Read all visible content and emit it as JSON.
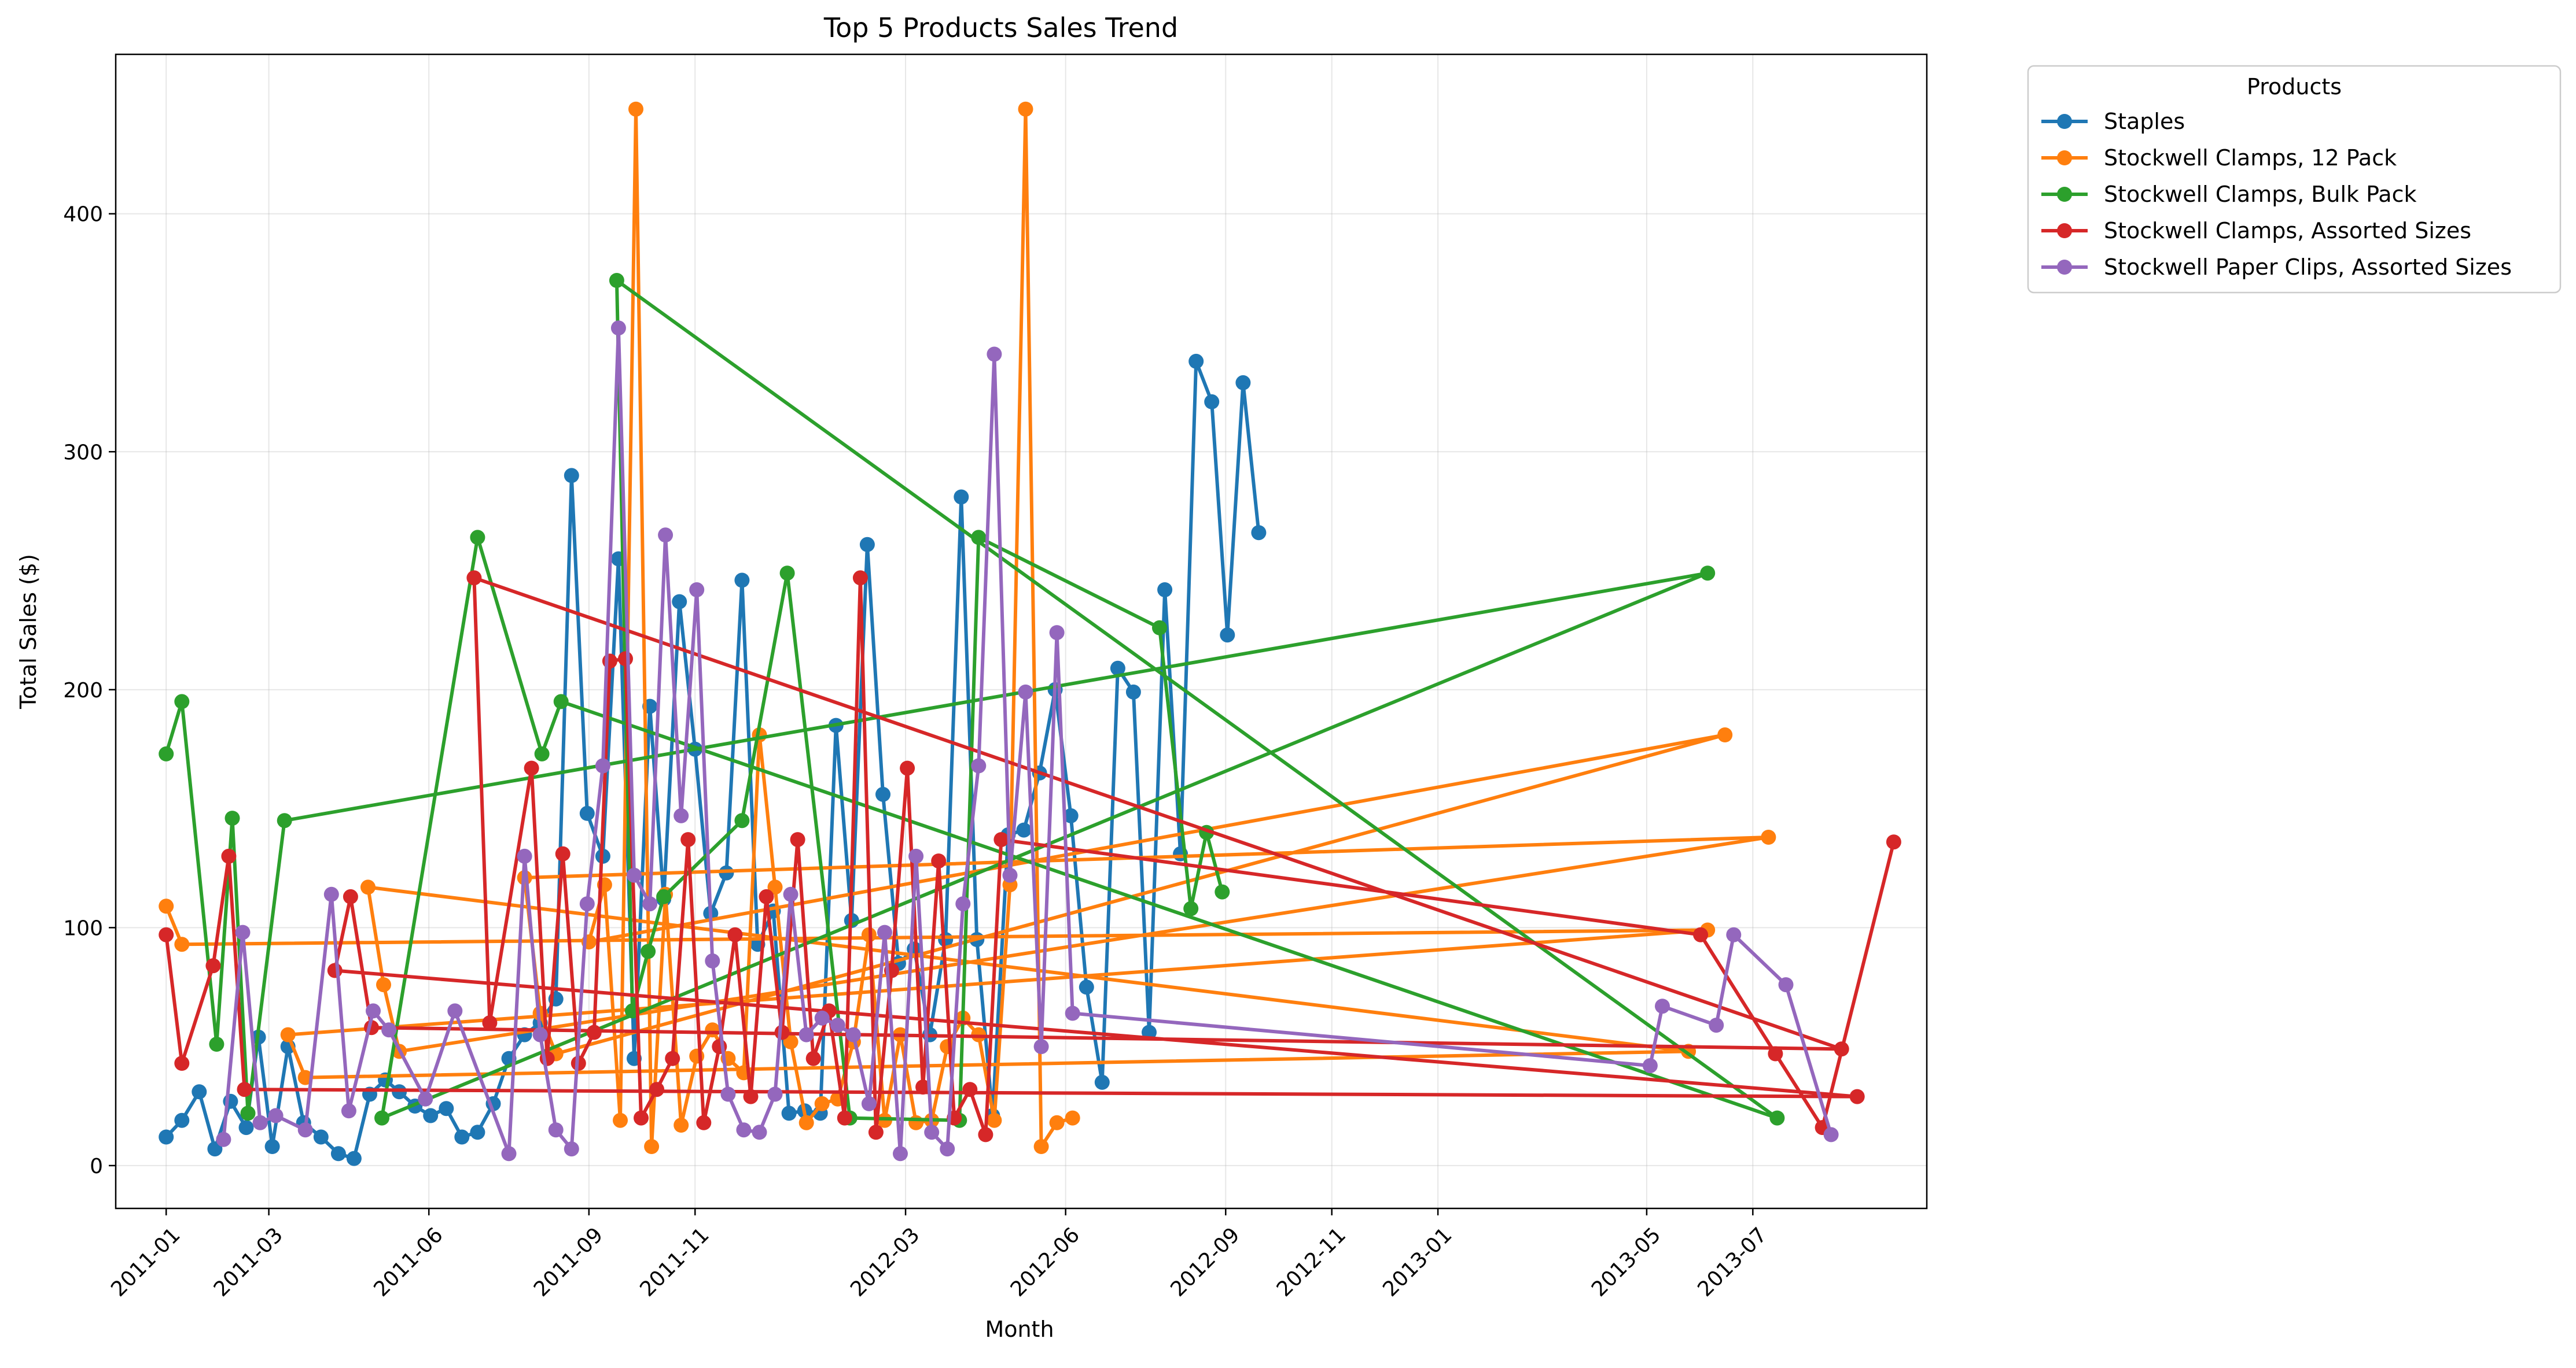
{
  "chart_data": {
    "type": "line",
    "title": "Top 5 Products Sales Trend",
    "xlabel": "Month",
    "ylabel": "Total Sales ($)",
    "xlim": [
      "2010-12-03",
      "2013-10-09"
    ],
    "ylim": [
      -18,
      467
    ],
    "x_ticks": [
      "2011-01",
      "2011-03",
      "2011-06",
      "2011-09",
      "2011-11",
      "2012-03",
      "2012-06",
      "2012-09",
      "2012-11",
      "2013-01",
      "2013-05",
      "2013-07"
    ],
    "y_ticks": [
      0,
      100,
      200,
      300,
      400
    ],
    "grid": true,
    "legend": {
      "title": "Products",
      "placement": "outside-top-right"
    },
    "series": [
      {
        "name": "Staples",
        "color": "#1f77b4",
        "points": [
          [
            "2011-01-01",
            12
          ],
          [
            "2011-01-10",
            19
          ],
          [
            "2011-01-20",
            31
          ],
          [
            "2011-01-29",
            7
          ],
          [
            "2011-02-07",
            27
          ],
          [
            "2011-02-16",
            16
          ],
          [
            "2011-02-23",
            54
          ],
          [
            "2011-03-03",
            8
          ],
          [
            "2011-03-12",
            50
          ],
          [
            "2011-03-21",
            18
          ],
          [
            "2011-03-31",
            12
          ],
          [
            "2011-04-10",
            5
          ],
          [
            "2011-04-19",
            3
          ],
          [
            "2011-04-28",
            30
          ],
          [
            "2011-05-07",
            36
          ],
          [
            "2011-05-15",
            31
          ],
          [
            "2011-05-24",
            25
          ],
          [
            "2011-06-02",
            21
          ],
          [
            "2011-06-11",
            24
          ],
          [
            "2011-06-20",
            12
          ],
          [
            "2011-06-29",
            14
          ],
          [
            "2011-07-08",
            26
          ],
          [
            "2011-07-17",
            45
          ],
          [
            "2011-07-26",
            55
          ],
          [
            "2011-08-04",
            60
          ],
          [
            "2011-08-13",
            70
          ],
          [
            "2011-08-22",
            290
          ],
          [
            "2011-08-31",
            148
          ],
          [
            "2011-09-09",
            130
          ],
          [
            "2011-09-18",
            255
          ],
          [
            "2011-09-27",
            45
          ],
          [
            "2011-10-06",
            193
          ],
          [
            "2011-10-14",
            112
          ],
          [
            "2011-10-23",
            237
          ],
          [
            "2011-11-01",
            175
          ],
          [
            "2011-11-10",
            106
          ],
          [
            "2011-11-19",
            123
          ],
          [
            "2011-11-28",
            246
          ],
          [
            "2011-12-07",
            93
          ],
          [
            "2011-12-16",
            107
          ],
          [
            "2011-12-25",
            22
          ],
          [
            "2012-01-03",
            23
          ],
          [
            "2012-01-12",
            22
          ],
          [
            "2012-01-21",
            185
          ],
          [
            "2012-01-30",
            103
          ],
          [
            "2012-02-08",
            261
          ],
          [
            "2012-02-17",
            156
          ],
          [
            "2012-02-26",
            85
          ],
          [
            "2012-03-06",
            91
          ],
          [
            "2012-03-15",
            55
          ],
          [
            "2012-03-24",
            95
          ],
          [
            "2012-04-02",
            281
          ],
          [
            "2012-04-11",
            95
          ],
          [
            "2012-04-20",
            21
          ],
          [
            "2012-04-29",
            139
          ],
          [
            "2012-05-08",
            141
          ],
          [
            "2012-05-17",
            165
          ],
          [
            "2012-05-26",
            200
          ],
          [
            "2012-06-04",
            147
          ],
          [
            "2012-06-13",
            75
          ],
          [
            "2012-06-22",
            35
          ],
          [
            "2012-07-01",
            209
          ],
          [
            "2012-07-10",
            199
          ],
          [
            "2012-07-19",
            56
          ],
          [
            "2012-07-28",
            242
          ],
          [
            "2012-08-06",
            131
          ],
          [
            "2012-08-15",
            338
          ],
          [
            "2012-08-24",
            321
          ],
          [
            "2012-09-02",
            223
          ],
          [
            "2012-09-11",
            329
          ],
          [
            "2012-09-20",
            266
          ]
        ]
      },
      {
        "name": "Stockwell Clamps, 12 Pack",
        "color": "#ff7f0e",
        "points": [
          [
            "2011-01-01",
            109
          ],
          [
            "2011-01-10",
            93
          ],
          [
            "2013-06-05",
            99
          ],
          [
            "2011-03-12",
            55
          ],
          [
            "2011-03-22",
            37
          ],
          [
            "2013-05-25",
            48
          ],
          [
            "2011-04-27",
            117
          ],
          [
            "2011-05-06",
            76
          ],
          [
            "2011-05-15",
            48
          ],
          [
            "2013-07-10",
            138
          ],
          [
            "2011-07-26",
            121
          ],
          [
            "2011-08-04",
            64
          ],
          [
            "2011-08-13",
            47
          ],
          [
            "2013-06-15",
            181
          ],
          [
            "2011-09-01",
            94
          ],
          [
            "2011-09-10",
            118
          ],
          [
            "2011-09-19",
            19
          ],
          [
            "2011-09-28",
            444
          ],
          [
            "2011-10-07",
            8
          ],
          [
            "2011-10-15",
            114
          ],
          [
            "2011-10-24",
            17
          ],
          [
            "2011-11-02",
            46
          ],
          [
            "2011-11-11",
            57
          ],
          [
            "2011-11-20",
            45
          ],
          [
            "2011-11-29",
            39
          ],
          [
            "2011-12-08",
            181
          ],
          [
            "2011-12-17",
            117
          ],
          [
            "2011-12-26",
            52
          ],
          [
            "2012-01-04",
            18
          ],
          [
            "2012-01-13",
            26
          ],
          [
            "2012-01-22",
            28
          ],
          [
            "2012-01-31",
            52
          ],
          [
            "2012-02-09",
            97
          ],
          [
            "2012-02-18",
            19
          ],
          [
            "2012-02-27",
            55
          ],
          [
            "2012-03-07",
            18
          ],
          [
            "2012-03-16",
            19
          ],
          [
            "2012-03-25",
            50
          ],
          [
            "2012-04-03",
            62
          ],
          [
            "2012-04-12",
            55
          ],
          [
            "2012-04-21",
            19
          ],
          [
            "2012-04-30",
            118
          ],
          [
            "2012-05-09",
            444
          ],
          [
            "2012-05-18",
            8
          ],
          [
            "2012-05-27",
            18
          ],
          [
            "2012-06-05",
            20
          ]
        ]
      },
      {
        "name": "Stockwell Clamps, Bulk Pack",
        "color": "#2ca02c",
        "points": [
          [
            "2011-01-01",
            173
          ],
          [
            "2011-01-10",
            195
          ],
          [
            "2011-01-30",
            51
          ],
          [
            "2011-02-08",
            146
          ],
          [
            "2011-02-17",
            22
          ],
          [
            "2011-03-10",
            145
          ],
          [
            "2013-06-05",
            249
          ],
          [
            "2011-05-05",
            20
          ],
          [
            "2011-06-29",
            264
          ],
          [
            "2011-08-05",
            173
          ],
          [
            "2011-08-16",
            195
          ],
          [
            "2013-07-15",
            20
          ],
          [
            "2011-09-17",
            372
          ],
          [
            "2011-09-26",
            65
          ],
          [
            "2011-10-05",
            90
          ],
          [
            "2011-10-14",
            113
          ],
          [
            "2011-11-28",
            145
          ],
          [
            "2011-12-24",
            249
          ],
          [
            "2012-01-29",
            20
          ],
          [
            "2012-04-01",
            19
          ],
          [
            "2012-04-12",
            264
          ],
          [
            "2012-07-25",
            226
          ],
          [
            "2012-08-12",
            108
          ],
          [
            "2012-08-21",
            140
          ],
          [
            "2012-08-30",
            115
          ]
        ]
      },
      {
        "name": "Stockwell Clamps, Assorted Sizes",
        "color": "#d62728",
        "points": [
          [
            "2011-01-01",
            97
          ],
          [
            "2011-01-10",
            43
          ],
          [
            "2011-01-28",
            84
          ],
          [
            "2011-02-06",
            130
          ],
          [
            "2011-02-15",
            32
          ],
          [
            "2013-08-30",
            29
          ],
          [
            "2011-04-08",
            82
          ],
          [
            "2011-04-17",
            113
          ],
          [
            "2011-04-29",
            58
          ],
          [
            "2013-08-21",
            49
          ],
          [
            "2011-06-27",
            247
          ],
          [
            "2011-07-06",
            60
          ],
          [
            "2011-07-30",
            167
          ],
          [
            "2011-08-08",
            45
          ],
          [
            "2011-08-17",
            131
          ],
          [
            "2011-08-26",
            43
          ],
          [
            "2011-09-04",
            56
          ],
          [
            "2011-09-13",
            212
          ],
          [
            "2011-09-22",
            213
          ],
          [
            "2011-10-01",
            20
          ],
          [
            "2011-10-10",
            32
          ],
          [
            "2011-10-19",
            45
          ],
          [
            "2011-10-28",
            137
          ],
          [
            "2011-11-06",
            18
          ],
          [
            "2011-11-15",
            50
          ],
          [
            "2011-11-24",
            97
          ],
          [
            "2011-12-03",
            29
          ],
          [
            "2011-12-12",
            113
          ],
          [
            "2011-12-21",
            56
          ],
          [
            "2011-12-30",
            137
          ],
          [
            "2012-01-08",
            45
          ],
          [
            "2012-01-17",
            65
          ],
          [
            "2012-01-26",
            20
          ],
          [
            "2012-02-04",
            247
          ],
          [
            "2012-02-13",
            14
          ],
          [
            "2012-02-22",
            82
          ],
          [
            "2012-03-02",
            167
          ],
          [
            "2012-03-11",
            33
          ],
          [
            "2012-03-20",
            128
          ],
          [
            "2012-03-29",
            20
          ],
          [
            "2012-04-07",
            32
          ],
          [
            "2012-04-16",
            13
          ],
          [
            "2012-04-25",
            137
          ],
          [
            "2013-06-01",
            97
          ],
          [
            "2013-07-14",
            47
          ],
          [
            "2013-08-10",
            16
          ],
          [
            "2013-09-20",
            136
          ]
        ]
      },
      {
        "name": "Stockwell Paper Clips, Assorted Sizes",
        "color": "#9467bd",
        "points": [
          [
            "2011-02-03",
            11
          ],
          [
            "2011-02-14",
            98
          ],
          [
            "2011-02-24",
            18
          ],
          [
            "2011-03-05",
            21
          ],
          [
            "2011-03-22",
            15
          ],
          [
            "2011-04-06",
            114
          ],
          [
            "2011-04-16",
            23
          ],
          [
            "2011-04-30",
            65
          ],
          [
            "2011-05-09",
            57
          ],
          [
            "2011-05-30",
            28
          ],
          [
            "2011-06-16",
            65
          ],
          [
            "2011-07-17",
            5
          ],
          [
            "2011-07-26",
            130
          ],
          [
            "2011-08-04",
            55
          ],
          [
            "2011-08-13",
            15
          ],
          [
            "2011-08-22",
            7
          ],
          [
            "2011-08-31",
            110
          ],
          [
            "2011-09-09",
            168
          ],
          [
            "2011-09-18",
            352
          ],
          [
            "2011-09-27",
            122
          ],
          [
            "2011-10-06",
            110
          ],
          [
            "2011-10-15",
            265
          ],
          [
            "2011-10-24",
            147
          ],
          [
            "2011-11-02",
            242
          ],
          [
            "2011-11-11",
            86
          ],
          [
            "2011-11-20",
            30
          ],
          [
            "2011-11-29",
            15
          ],
          [
            "2011-12-08",
            14
          ],
          [
            "2011-12-17",
            30
          ],
          [
            "2011-12-26",
            114
          ],
          [
            "2012-01-04",
            55
          ],
          [
            "2012-01-13",
            62
          ],
          [
            "2012-01-22",
            59
          ],
          [
            "2012-01-31",
            55
          ],
          [
            "2012-02-09",
            26
          ],
          [
            "2012-02-18",
            98
          ],
          [
            "2012-02-27",
            5
          ],
          [
            "2012-03-07",
            130
          ],
          [
            "2012-03-16",
            14
          ],
          [
            "2012-03-25",
            7
          ],
          [
            "2012-04-03",
            110
          ],
          [
            "2012-04-12",
            168
          ],
          [
            "2012-04-21",
            341
          ],
          [
            "2012-04-30",
            122
          ],
          [
            "2012-05-09",
            199
          ],
          [
            "2012-05-18",
            50
          ],
          [
            "2012-05-27",
            224
          ],
          [
            "2012-06-05",
            64
          ],
          [
            "2013-05-03",
            42
          ],
          [
            "2013-05-10",
            67
          ],
          [
            "2013-06-10",
            59
          ],
          [
            "2013-06-20",
            97
          ],
          [
            "2013-07-20",
            76
          ],
          [
            "2013-08-15",
            13
          ]
        ]
      }
    ]
  }
}
